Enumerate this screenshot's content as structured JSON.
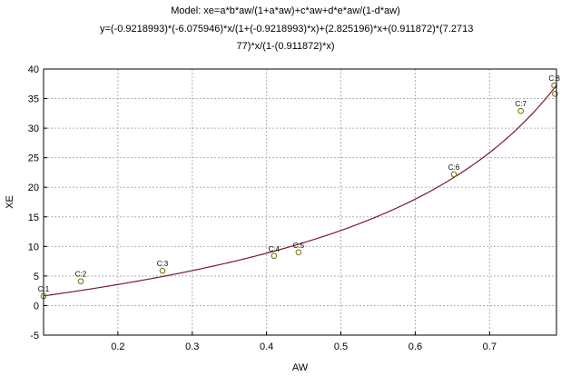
{
  "chart_data": {
    "type": "scatter",
    "title_lines": [
      "Model: xe=a*b*aw/(1+a*aw)+c*aw+d*e*aw/(1-d*aw)",
      "y=(-0.9218993)*(-6.075946)*x/(1+(-0.9218993)*x)+(2.825196)*x+(0.911872)*(7.2713",
      "77)*x/(1-(0.911872)*x)"
    ],
    "xlabel": "AW",
    "ylabel": "XE",
    "xlim": [
      0.1,
      0.79
    ],
    "ylim": [
      -5,
      40
    ],
    "xticks": [
      "0.2",
      "0.3",
      "0.4",
      "0.5",
      "0.6",
      "0.7"
    ],
    "yticks": [
      "-5",
      "0",
      "5",
      "10",
      "15",
      "20",
      "25",
      "30",
      "35",
      "40"
    ],
    "grid": true,
    "points": [
      {
        "label": "C:1",
        "x": 0.1,
        "y": 1.6
      },
      {
        "label": "C:2",
        "x": 0.15,
        "y": 4.1
      },
      {
        "label": "C:3",
        "x": 0.26,
        "y": 5.9
      },
      {
        "label": "C:4",
        "x": 0.41,
        "y": 8.4
      },
      {
        "label": "C:5",
        "x": 0.443,
        "y": 9.0
      },
      {
        "label": "C:6",
        "x": 0.652,
        "y": 22.2
      },
      {
        "label": "C:7",
        "x": 0.742,
        "y": 32.9
      },
      {
        "label": "C:8",
        "x": 0.787,
        "y": 37.2
      },
      {
        "label": "",
        "x": 0.788,
        "y": 35.8
      }
    ],
    "model": {
      "a": -0.9218993,
      "b": -6.075946,
      "c": 2.825196,
      "d": 0.911872,
      "e": 7.271377
    },
    "colors": {
      "curve": "#7a1a2a",
      "marker": "#7a6a00",
      "grid": "#b0b0b0"
    }
  }
}
